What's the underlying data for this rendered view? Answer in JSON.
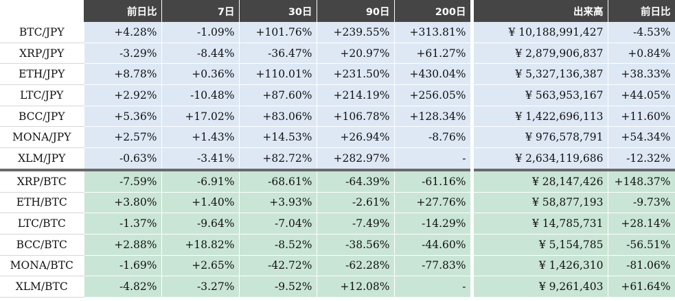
{
  "header": {
    "columns": [
      "前日比",
      "7日",
      "30日",
      "90日",
      "200日",
      "出来高",
      "前日比"
    ]
  },
  "groups": {
    "jpy": [
      {
        "pair": "BTC/JPY",
        "d1": "+4.28%",
        "d7": "-1.09%",
        "d30": "+101.76%",
        "d90": "+239.55%",
        "d200": "+313.81%",
        "volume": "¥ 10,188,991,427",
        "vol_change": "-4.53%"
      },
      {
        "pair": "XRP/JPY",
        "d1": "-3.29%",
        "d7": "-8.44%",
        "d30": "-36.47%",
        "d90": "+20.97%",
        "d200": "+61.27%",
        "volume": "¥ 2,879,906,837",
        "vol_change": "+0.84%"
      },
      {
        "pair": "ETH/JPY",
        "d1": "+8.78%",
        "d7": "+0.36%",
        "d30": "+110.01%",
        "d90": "+231.50%",
        "d200": "+430.04%",
        "volume": "¥ 5,327,136,387",
        "vol_change": "+38.33%"
      },
      {
        "pair": "LTC/JPY",
        "d1": "+2.92%",
        "d7": "-10.48%",
        "d30": "+87.60%",
        "d90": "+214.19%",
        "d200": "+256.05%",
        "volume": "¥ 563,953,167",
        "vol_change": "+44.05%"
      },
      {
        "pair": "BCC/JPY",
        "d1": "+5.36%",
        "d7": "+17.02%",
        "d30": "+83.06%",
        "d90": "+106.78%",
        "d200": "+128.34%",
        "volume": "¥ 1,422,696,113",
        "vol_change": "+11.60%"
      },
      {
        "pair": "MONA/JPY",
        "d1": "+2.57%",
        "d7": "+1.43%",
        "d30": "+14.53%",
        "d90": "+26.94%",
        "d200": "-8.76%",
        "volume": "¥ 976,578,791",
        "vol_change": "+54.34%"
      },
      {
        "pair": "XLM/JPY",
        "d1": "-0.63%",
        "d7": "-3.41%",
        "d30": "+82.72%",
        "d90": "+282.97%",
        "d200": "-",
        "volume": "¥ 2,634,119,686",
        "vol_change": "-12.32%"
      }
    ],
    "btc": [
      {
        "pair": "XRP/BTC",
        "d1": "-7.59%",
        "d7": "-6.91%",
        "d30": "-68.61%",
        "d90": "-64.39%",
        "d200": "-61.16%",
        "volume": "¥ 28,147,426",
        "vol_change": "+148.37%"
      },
      {
        "pair": "ETH/BTC",
        "d1": "+3.80%",
        "d7": "+1.40%",
        "d30": "+3.93%",
        "d90": "-2.61%",
        "d200": "+27.76%",
        "volume": "¥ 58,877,193",
        "vol_change": "-9.73%"
      },
      {
        "pair": "LTC/BTC",
        "d1": "-1.37%",
        "d7": "-9.64%",
        "d30": "-7.04%",
        "d90": "-7.49%",
        "d200": "-14.29%",
        "volume": "¥ 14,785,731",
        "vol_change": "+28.14%"
      },
      {
        "pair": "BCC/BTC",
        "d1": "+2.88%",
        "d7": "+18.82%",
        "d30": "-8.52%",
        "d90": "-38.56%",
        "d200": "-44.60%",
        "volume": "¥ 5,154,785",
        "vol_change": "-56.51%"
      },
      {
        "pair": "MONA/BTC",
        "d1": "-1.69%",
        "d7": "+2.65%",
        "d30": "-42.72%",
        "d90": "-62.28%",
        "d200": "-77.83%",
        "volume": "¥ 1,426,310",
        "vol_change": "-81.06%"
      },
      {
        "pair": "XLM/BTC",
        "d1": "-4.82%",
        "d7": "-3.27%",
        "d30": "-9.52%",
        "d90": "+12.08%",
        "d200": "-",
        "volume": "¥ 9,261,403",
        "vol_change": "+61.64%"
      }
    ]
  },
  "colors": {
    "header_bg": "#454545",
    "jpy_row_bg": "#dde8f4",
    "btc_row_bg": "#c9e5d5",
    "group_divider": "#6a6a6a"
  }
}
